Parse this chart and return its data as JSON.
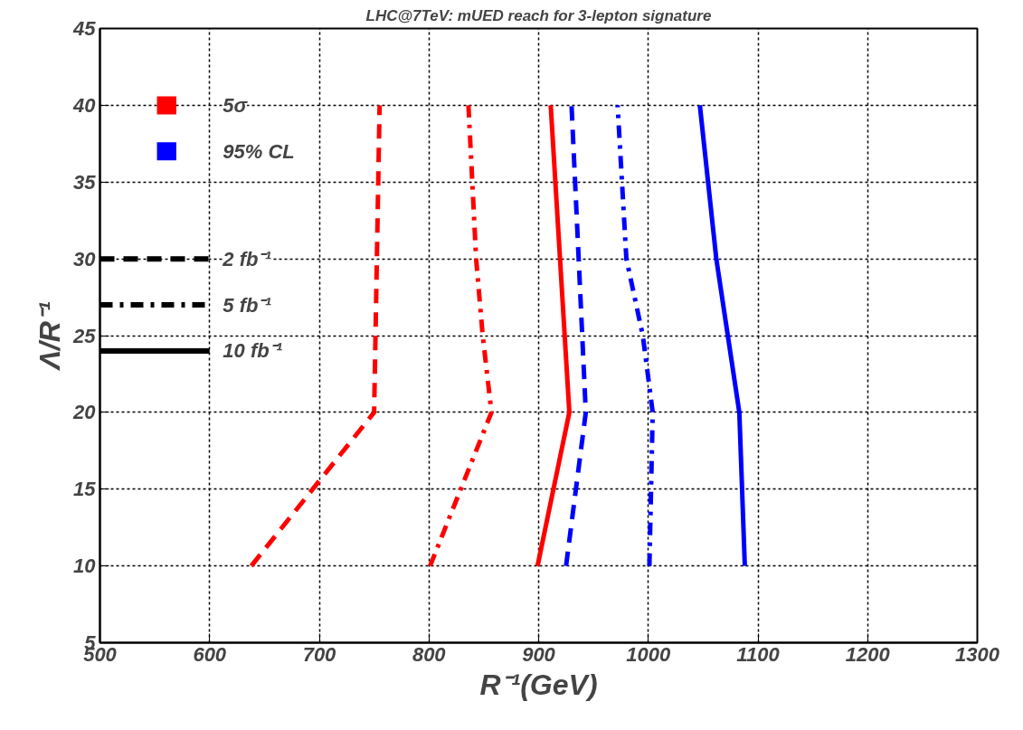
{
  "chart_data": {
    "type": "line",
    "title": "LHC@7TeV: mUED reach for 3-lepton signature",
    "xlabel": "R⁻¹(GeV)",
    "ylabel": "Λ/R⁻¹",
    "xlim": [
      500,
      1300
    ],
    "xticks": [
      500,
      600,
      700,
      800,
      900,
      1000,
      1100,
      1200,
      1300
    ],
    "ylim": [
      5,
      45
    ],
    "yticks": [
      5,
      10,
      15,
      20,
      25,
      30,
      35,
      40,
      45
    ],
    "grid": true,
    "annotations": [
      "5σ",
      "95% CL",
      "2 fb⁻¹",
      "5 fb⁻¹",
      "10 fb⁻¹"
    ],
    "series": [
      {
        "color": "#ff0000",
        "line_style": "dashed",
        "x": [
          638,
          750,
          755
        ],
        "values": [
          10,
          20,
          40
        ]
      },
      {
        "color": "#ff0000",
        "line_style": "dotted",
        "x": [
          801,
          857,
          849,
          843,
          836
        ],
        "values": [
          10,
          20,
          25,
          30,
          40
        ]
      },
      {
        "color": "#ff0000",
        "line_style": "solid",
        "x": [
          899,
          928,
          911
        ],
        "values": [
          10,
          20,
          40
        ]
      },
      {
        "color": "#0000ff",
        "line_style": "dashed",
        "x": [
          925,
          943,
          930
        ],
        "values": [
          10,
          20,
          40
        ]
      },
      {
        "color": "#0000ff",
        "line_style": "dotted",
        "x": [
          1001,
          1004,
          995,
          980,
          976,
          972
        ],
        "values": [
          10,
          20,
          25,
          30,
          35,
          40
        ]
      },
      {
        "color": "#0000ff",
        "line_style": "solid",
        "x": [
          1088,
          1083,
          1062,
          1047
        ],
        "values": [
          10,
          20,
          30,
          40
        ]
      }
    ]
  }
}
